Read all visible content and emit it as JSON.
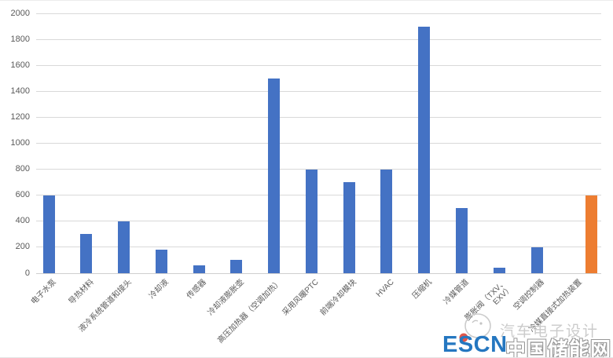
{
  "chart_data": {
    "type": "bar",
    "title": "",
    "xlabel": "",
    "ylabel": "",
    "categories": [
      "电子水泵",
      "导热材料",
      "液冷系统管道和接头",
      "冷却液",
      "传感器",
      "冷却液膨胀壶",
      "高压加热器（空调加热）",
      "采用风暖PTC",
      "前端冷却模块",
      "HVAC",
      "压缩机",
      "冷媒管道",
      "膨胀阀（TXV、\nEXV）",
      "空调控制器",
      "冷媒直接式加热装置"
    ],
    "values": [
      600,
      300,
      400,
      180,
      60,
      100,
      1500,
      800,
      700,
      800,
      1900,
      500,
      40,
      200,
      600
    ],
    "ylim": [
      0,
      2000
    ],
    "ytick_step": 200,
    "grid": true,
    "legend": false,
    "bar_color": "#4472C4",
    "highlight_index": 14,
    "highlight_color": "#ED7D31"
  },
  "watermarks": {
    "escn_logo": "ESCN",
    "escn_site": "中国储能网",
    "wechat_account": "汽车电子设计"
  },
  "colors": {
    "bar_blue": "#4472C4",
    "bar_orange": "#ED7D31",
    "gridline": "#D9D9D9",
    "axis_text": "#595959",
    "escn_blue": "#2577C0",
    "watermark_gray": "#C6C6C6",
    "logo_red_dot": "#E0564A"
  }
}
